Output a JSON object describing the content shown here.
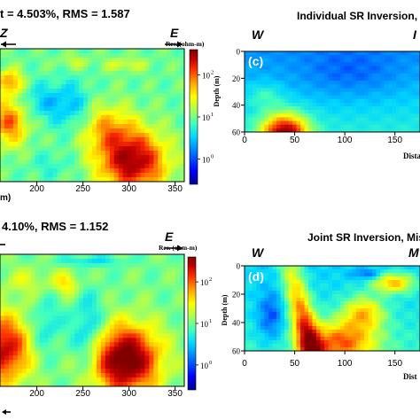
{
  "colors": {
    "colormap": [
      "#00008b",
      "#0000ff",
      "#0080ff",
      "#00d5ff",
      "#3fffbf",
      "#a8ff57",
      "#ffff00",
      "#ffa500",
      "#ff3300",
      "#c00000",
      "#800000"
    ]
  },
  "chart_data": [
    {
      "type": "heatmap",
      "title": "t = 4.503%, RMS = 1.587",
      "left_dir": "Z",
      "right_dir": "E",
      "xlabel": "m)",
      "colorbar_title": "Res. (ohm-m)",
      "colorbar_ticks": [
        {
          "value": 0,
          "label": "10"
        },
        {
          "value": 1,
          "label": "10"
        },
        {
          "value": 2,
          "label": "10"
        }
      ],
      "colorbar_exponents": [
        "0",
        "1",
        "2"
      ],
      "x_ticks": [
        "200",
        "250",
        "300",
        "350"
      ],
      "x_tick_values": [
        200,
        250,
        300,
        350
      ],
      "xlim": [
        160,
        360
      ],
      "log_range": [
        -0.6,
        2.6
      ]
    },
    {
      "type": "heatmap",
      "panel_label": "(c)",
      "title": "Individual SR Inversion, M",
      "left_dir": "W",
      "right_dir": "I",
      "xlabel": "Dista",
      "ylabel": "Depth (m)",
      "x_ticks": [
        "0",
        "50",
        "100",
        "150"
      ],
      "x_tick_values": [
        0,
        50,
        100,
        150
      ],
      "y_ticks": [
        "0",
        "20",
        "40",
        "60"
      ],
      "y_tick_values": [
        0,
        20,
        40,
        60
      ],
      "xlim": [
        0,
        175
      ],
      "ylim": [
        0,
        60
      ]
    },
    {
      "type": "heatmap",
      "title": "4.10%, RMS = 1.152",
      "left_dir": "",
      "right_dir": "E",
      "colorbar_title": "Res. (ohm-m)",
      "colorbar_ticks": [
        {
          "value": 0,
          "label": "10"
        },
        {
          "value": 1,
          "label": "10"
        },
        {
          "value": 2,
          "label": "10"
        }
      ],
      "colorbar_exponents": [
        "0",
        "1",
        "2"
      ],
      "x_ticks": [
        "200",
        "250",
        "300",
        "350"
      ],
      "x_tick_values": [
        200,
        250,
        300,
        350
      ],
      "xlim": [
        160,
        360
      ],
      "log_range": [
        -0.6,
        2.6
      ]
    },
    {
      "type": "heatmap",
      "panel_label": "(d)",
      "title": "Joint SR Inversion, Mis",
      "left_dir": "W",
      "right_dir": "M",
      "xlabel": "Dist",
      "ylabel": "Depth (m)",
      "x_ticks": [
        "0",
        "50",
        "100",
        "150"
      ],
      "x_tick_values": [
        0,
        50,
        100,
        150
      ],
      "y_ticks": [
        "0",
        "20",
        "40",
        "60"
      ],
      "y_tick_values": [
        0,
        20,
        40,
        60
      ],
      "xlim": [
        0,
        175
      ],
      "ylim": [
        0,
        60
      ]
    }
  ]
}
